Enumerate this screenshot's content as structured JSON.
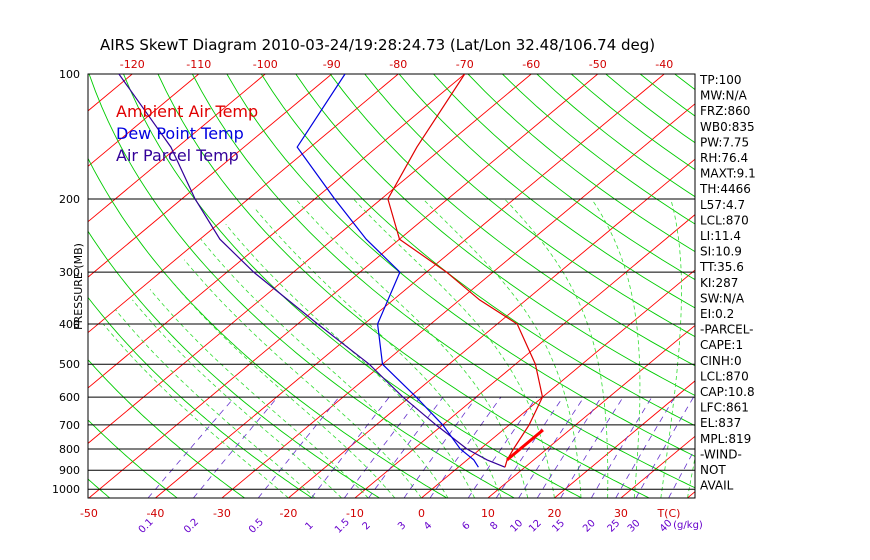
{
  "title": "AIRS SkewT Diagram 2010-03-24/19:28:24.73 (Lat/Lon 32.48/106.74 deg)",
  "colors": {
    "ambient": "#e00000",
    "dewpoint": "#0000e0",
    "parcel": "#330099",
    "isotherm": "#ff0000",
    "dry_adiabat": "#00cc00",
    "moist_adiabat": "#33dd33",
    "mixing": "#6633cc",
    "isobar": "#000000"
  },
  "chart_data": {
    "type": "line",
    "ylabel": "PRESSURE (MB)",
    "xlabel_units": "T(C)",
    "mixing_units": "(g/kg)",
    "legend": [
      "Ambient Air Temp",
      "Dew Point Temp",
      "Air Parcel Temp"
    ],
    "pressure_levels": [
      100,
      200,
      300,
      400,
      500,
      600,
      700,
      800,
      900,
      1000
    ],
    "top_ticks": [
      -120,
      -110,
      -100,
      -90,
      -80,
      -70,
      -60,
      -50,
      -40
    ],
    "bottom_ticks": [
      -50,
      -40,
      -30,
      -20,
      -10,
      0,
      10,
      20,
      30
    ],
    "mixing_ratio_labels": [
      "0.1",
      "0.2",
      "0.5",
      "1",
      "1.5",
      "2",
      "3",
      "4",
      "6",
      "8",
      "10",
      "12",
      "15",
      "20",
      "25",
      "30",
      "40"
    ],
    "ambient_temp": [
      [
        885,
        7
      ],
      [
        850,
        6
      ],
      [
        800,
        5
      ],
      [
        700,
        3
      ],
      [
        600,
        0
      ],
      [
        500,
        -7
      ],
      [
        400,
        -17
      ],
      [
        350,
        -27
      ],
      [
        300,
        -37
      ],
      [
        250,
        -50
      ],
      [
        200,
        -59
      ],
      [
        150,
        -64
      ],
      [
        100,
        -70
      ]
    ],
    "dew_point": [
      [
        885,
        3
      ],
      [
        850,
        1
      ],
      [
        800,
        -3
      ],
      [
        700,
        -10
      ],
      [
        600,
        -19
      ],
      [
        500,
        -30
      ],
      [
        400,
        -38
      ],
      [
        300,
        -44
      ],
      [
        250,
        -55
      ],
      [
        200,
        -67
      ],
      [
        150,
        -82
      ],
      [
        100,
        -88
      ]
    ],
    "parcel_temp": [
      [
        885,
        7
      ],
      [
        850,
        3
      ],
      [
        800,
        -2
      ],
      [
        700,
        -11
      ],
      [
        600,
        -21
      ],
      [
        500,
        -32
      ],
      [
        400,
        -47
      ],
      [
        300,
        -66
      ],
      [
        250,
        -77
      ],
      [
        200,
        -88
      ],
      [
        150,
        -101
      ],
      [
        100,
        -122
      ]
    ],
    "indices": [
      "TP:100",
      "MW:N/A",
      "FRZ:860",
      "WB0:835",
      "PW:7.75",
      "RH:76.4",
      "MAXT:9.1",
      "TH:4466",
      "L57:4.7",
      "LCL:870",
      "LI:11.4",
      "SI:10.9",
      "TT:35.6",
      "KI:287",
      "SW:N/A",
      "EI:0.2",
      "-PARCEL-",
      "CAPE:1",
      "CINH:0",
      "LCL:870",
      "CAP:10.8",
      "LFC:861",
      "EL:837",
      "MPL:819",
      "-WIND-",
      "NOT",
      "AVAIL"
    ]
  }
}
